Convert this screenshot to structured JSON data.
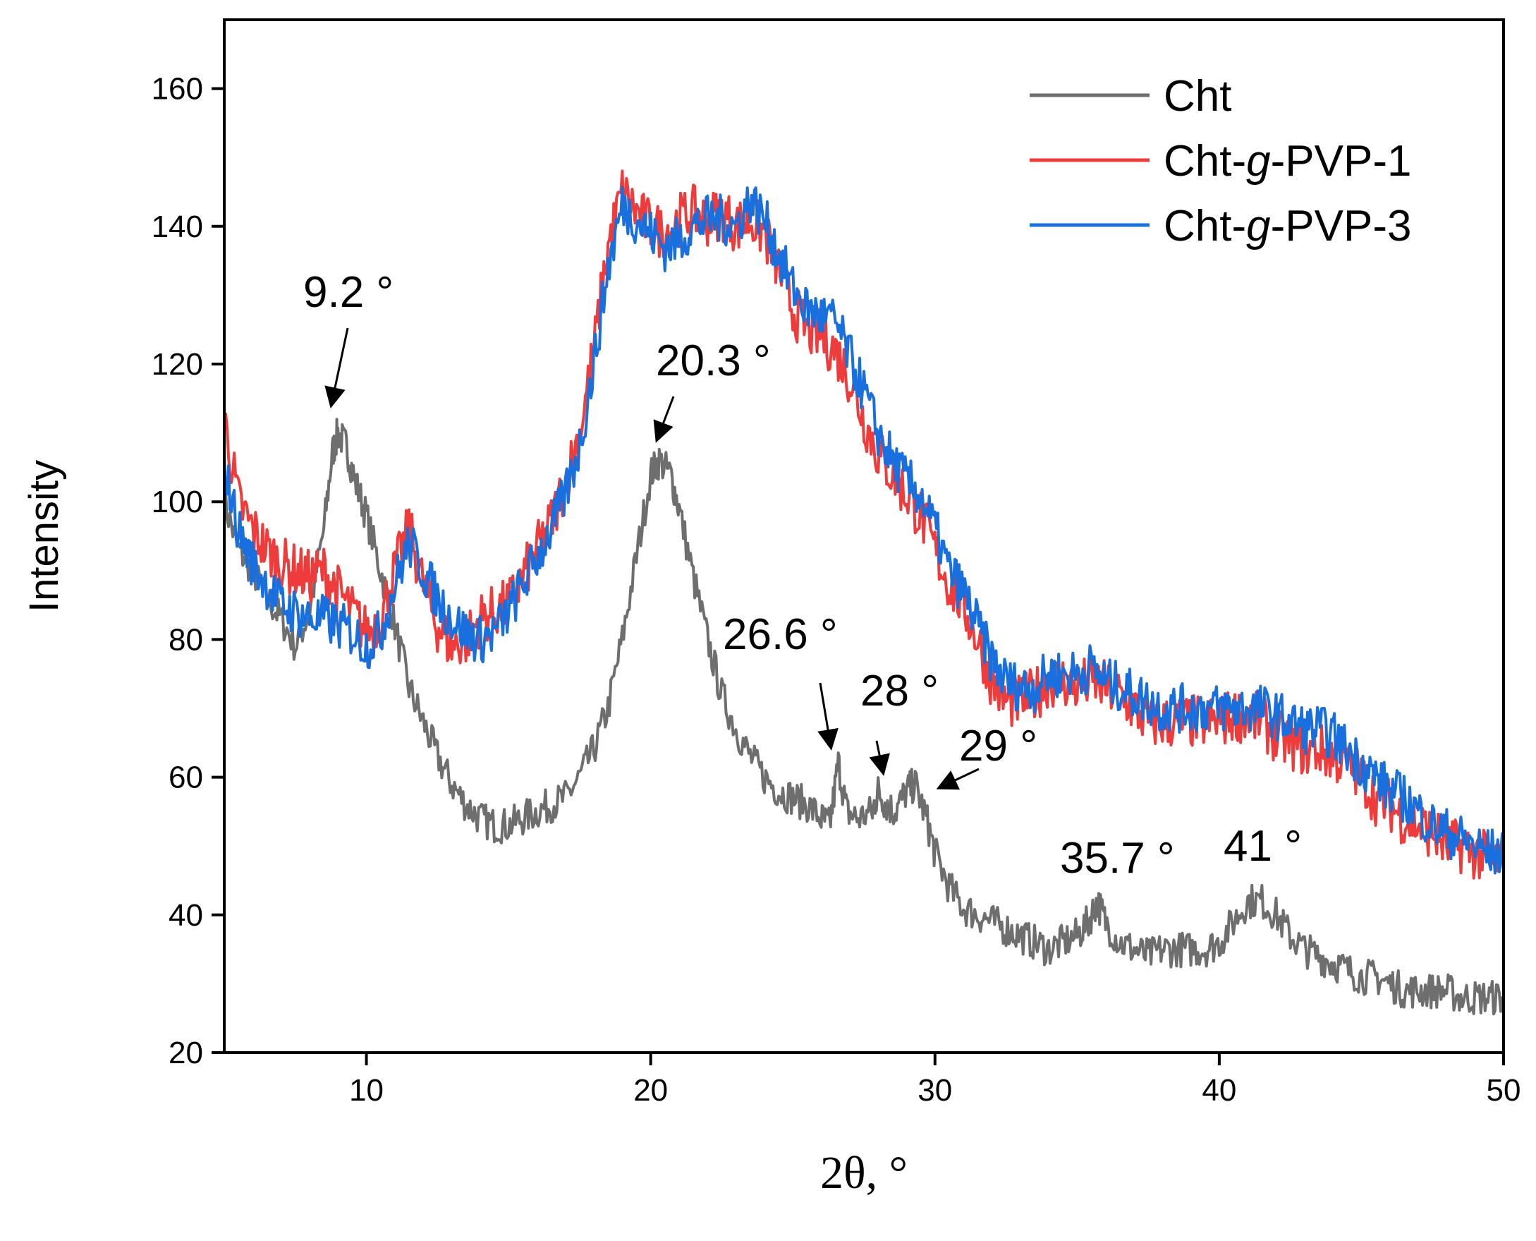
{
  "chart_data": {
    "type": "line",
    "title": "",
    "xlabel": "2θ, °",
    "ylabel": "Intensity",
    "xlim": [
      5,
      50
    ],
    "ylim": [
      20,
      170
    ],
    "xticks": [
      10,
      20,
      30,
      40,
      50
    ],
    "yticks": [
      20,
      40,
      60,
      80,
      100,
      120,
      140,
      160
    ],
    "legend_position": "top-right",
    "series": [
      {
        "name": "Cht",
        "color": "#6e6e6e",
        "points": [
          [
            5,
            100
          ],
          [
            5.5,
            93
          ],
          [
            6,
            90
          ],
          [
            6.5,
            86
          ],
          [
            7,
            83
          ],
          [
            7.5,
            79
          ],
          [
            8,
            84
          ],
          [
            8.5,
            96
          ],
          [
            8.8,
            107
          ],
          [
            9,
            110
          ],
          [
            9.3,
            108
          ],
          [
            9.6,
            103
          ],
          [
            10,
            98
          ],
          [
            10.5,
            90
          ],
          [
            11,
            82
          ],
          [
            11.5,
            73
          ],
          [
            12,
            68
          ],
          [
            12.5,
            63
          ],
          [
            13,
            59
          ],
          [
            13.5,
            56
          ],
          [
            14,
            54
          ],
          [
            14.5,
            53
          ],
          [
            15,
            53
          ],
          [
            15.5,
            54
          ],
          [
            16,
            55
          ],
          [
            16.5,
            56
          ],
          [
            17,
            57
          ],
          [
            17.5,
            60
          ],
          [
            18,
            64
          ],
          [
            18.5,
            70
          ],
          [
            19,
            80
          ],
          [
            19.5,
            92
          ],
          [
            20,
            104
          ],
          [
            20.3,
            106
          ],
          [
            20.7,
            104
          ],
          [
            21,
            99
          ],
          [
            21.5,
            89
          ],
          [
            22,
            80
          ],
          [
            22.5,
            72
          ],
          [
            23,
            67
          ],
          [
            23.5,
            63
          ],
          [
            24,
            60
          ],
          [
            24.5,
            58
          ],
          [
            25,
            57
          ],
          [
            25.5,
            56
          ],
          [
            26,
            54
          ],
          [
            26.3,
            53
          ],
          [
            26.6,
            62
          ],
          [
            26.9,
            55
          ],
          [
            27.3,
            54
          ],
          [
            27.8,
            55
          ],
          [
            28,
            58
          ],
          [
            28.3,
            56
          ],
          [
            28.6,
            55
          ],
          [
            29,
            58
          ],
          [
            29.3,
            59
          ],
          [
            29.7,
            54
          ],
          [
            30,
            49
          ],
          [
            30.5,
            44
          ],
          [
            31,
            41
          ],
          [
            31.5,
            40
          ],
          [
            32,
            39
          ],
          [
            32.5,
            38
          ],
          [
            33,
            37
          ],
          [
            33.5,
            36
          ],
          [
            34,
            35
          ],
          [
            34.5,
            36
          ],
          [
            35,
            37
          ],
          [
            35.4,
            39
          ],
          [
            35.7,
            42
          ],
          [
            36,
            39
          ],
          [
            36.5,
            36
          ],
          [
            37,
            35
          ],
          [
            37.5,
            34
          ],
          [
            38,
            35
          ],
          [
            38.5,
            35
          ],
          [
            39,
            35
          ],
          [
            39.5,
            35
          ],
          [
            40,
            36
          ],
          [
            40.5,
            39
          ],
          [
            41,
            42
          ],
          [
            41.5,
            42
          ],
          [
            42,
            40
          ],
          [
            42.5,
            37
          ],
          [
            43,
            35
          ],
          [
            43.5,
            34
          ],
          [
            44,
            33
          ],
          [
            44.5,
            32
          ],
          [
            45,
            31
          ],
          [
            45.5,
            31
          ],
          [
            46,
            30
          ],
          [
            46.5,
            29
          ],
          [
            47,
            29
          ],
          [
            47.5,
            29
          ],
          [
            48,
            29
          ],
          [
            48.5,
            28
          ],
          [
            49,
            28
          ],
          [
            49.5,
            28
          ],
          [
            50,
            28
          ]
        ]
      },
      {
        "name": "Cht-g-PVP-1",
        "color": "#ee3b3b",
        "points": [
          [
            5,
            112
          ],
          [
            5.5,
            100
          ],
          [
            6,
            96
          ],
          [
            6.5,
            93
          ],
          [
            7,
            91
          ],
          [
            7.5,
            90
          ],
          [
            8,
            89
          ],
          [
            8.5,
            90
          ],
          [
            9,
            87
          ],
          [
            9.5,
            84
          ],
          [
            10,
            81
          ],
          [
            10.5,
            83
          ],
          [
            11,
            90
          ],
          [
            11.5,
            96
          ],
          [
            12,
            88
          ],
          [
            12.5,
            82
          ],
          [
            13,
            79
          ],
          [
            13.5,
            80
          ],
          [
            14,
            83
          ],
          [
            14.5,
            84
          ],
          [
            15,
            85
          ],
          [
            15.5,
            89
          ],
          [
            16,
            93
          ],
          [
            16.5,
            97
          ],
          [
            17,
            103
          ],
          [
            17.5,
            110
          ],
          [
            18,
            122
          ],
          [
            18.5,
            137
          ],
          [
            19,
            145
          ],
          [
            19.5,
            142
          ],
          [
            20,
            140
          ],
          [
            20.5,
            139
          ],
          [
            21,
            141
          ],
          [
            21.5,
            142
          ],
          [
            22,
            141
          ],
          [
            22.5,
            142
          ],
          [
            23,
            140
          ],
          [
            23.5,
            141
          ],
          [
            24,
            139
          ],
          [
            24.5,
            134
          ],
          [
            25,
            128
          ],
          [
            25.5,
            125
          ],
          [
            26,
            124
          ],
          [
            26.5,
            122
          ],
          [
            27,
            118
          ],
          [
            27.5,
            112
          ],
          [
            28,
            107
          ],
          [
            28.5,
            104
          ],
          [
            29,
            101
          ],
          [
            29.5,
            98
          ],
          [
            30,
            93
          ],
          [
            30.5,
            88
          ],
          [
            31,
            85
          ],
          [
            31.5,
            80
          ],
          [
            32,
            74
          ],
          [
            32.5,
            71
          ],
          [
            33,
            71
          ],
          [
            33.5,
            72
          ],
          [
            34,
            74
          ],
          [
            34.5,
            74
          ],
          [
            35,
            73
          ],
          [
            35.5,
            74
          ],
          [
            36,
            73
          ],
          [
            36.5,
            72
          ],
          [
            37,
            70
          ],
          [
            37.5,
            68
          ],
          [
            38,
            68
          ],
          [
            38.5,
            68
          ],
          [
            39,
            68
          ],
          [
            39.5,
            68
          ],
          [
            40,
            68
          ],
          [
            40.5,
            69
          ],
          [
            41,
            69
          ],
          [
            41.5,
            68
          ],
          [
            42,
            66
          ],
          [
            42.5,
            65
          ],
          [
            43,
            64
          ],
          [
            43.5,
            64
          ],
          [
            44,
            63
          ],
          [
            44.5,
            62
          ],
          [
            45,
            60
          ],
          [
            45.5,
            57
          ],
          [
            46,
            56
          ],
          [
            46.5,
            54
          ],
          [
            47,
            53
          ],
          [
            47.5,
            52
          ],
          [
            48,
            50
          ],
          [
            48.5,
            50
          ],
          [
            49,
            49
          ],
          [
            49.5,
            48
          ],
          [
            50,
            48
          ]
        ]
      },
      {
        "name": "Cht-g-PVP-3",
        "color": "#1a6fdf",
        "points": [
          [
            5,
            105
          ],
          [
            5.5,
            96
          ],
          [
            6,
            91
          ],
          [
            6.5,
            88
          ],
          [
            7,
            85
          ],
          [
            7.5,
            84
          ],
          [
            8,
            83
          ],
          [
            8.5,
            83
          ],
          [
            9,
            82
          ],
          [
            9.5,
            81
          ],
          [
            10,
            79
          ],
          [
            10.5,
            81
          ],
          [
            11,
            88
          ],
          [
            11.5,
            94
          ],
          [
            12,
            90
          ],
          [
            12.5,
            86
          ],
          [
            13,
            83
          ],
          [
            13.5,
            81
          ],
          [
            14,
            80
          ],
          [
            14.5,
            81
          ],
          [
            15,
            84
          ],
          [
            15.5,
            88
          ],
          [
            16,
            92
          ],
          [
            16.5,
            96
          ],
          [
            17,
            101
          ],
          [
            17.5,
            108
          ],
          [
            18,
            120
          ],
          [
            18.5,
            134
          ],
          [
            19,
            143
          ],
          [
            19.5,
            141
          ],
          [
            20,
            139
          ],
          [
            20.5,
            137
          ],
          [
            21,
            138
          ],
          [
            21.5,
            140
          ],
          [
            22,
            141
          ],
          [
            22.5,
            141
          ],
          [
            23,
            140
          ],
          [
            23.5,
            144
          ],
          [
            24,
            141
          ],
          [
            24.5,
            136
          ],
          [
            25,
            131
          ],
          [
            25.5,
            128
          ],
          [
            26,
            127
          ],
          [
            26.5,
            126
          ],
          [
            27,
            121
          ],
          [
            27.5,
            116
          ],
          [
            28,
            110
          ],
          [
            28.5,
            106
          ],
          [
            29,
            103
          ],
          [
            29.5,
            101
          ],
          [
            30,
            96
          ],
          [
            30.5,
            90
          ],
          [
            31,
            87
          ],
          [
            31.5,
            82
          ],
          [
            32,
            77
          ],
          [
            32.5,
            74
          ],
          [
            33,
            73
          ],
          [
            33.5,
            73
          ],
          [
            34,
            75
          ],
          [
            34.5,
            75
          ],
          [
            35,
            75
          ],
          [
            35.5,
            76
          ],
          [
            36,
            74
          ],
          [
            36.5,
            73
          ],
          [
            37,
            72
          ],
          [
            37.5,
            71
          ],
          [
            38,
            70
          ],
          [
            38.5,
            70
          ],
          [
            39,
            70
          ],
          [
            39.5,
            70
          ],
          [
            40,
            70
          ],
          [
            40.5,
            70
          ],
          [
            41,
            70
          ],
          [
            41.5,
            70
          ],
          [
            42,
            69
          ],
          [
            42.5,
            68
          ],
          [
            43,
            67
          ],
          [
            43.5,
            67
          ],
          [
            44,
            66
          ],
          [
            44.5,
            64
          ],
          [
            45,
            62
          ],
          [
            45.5,
            60
          ],
          [
            46,
            58
          ],
          [
            46.5,
            57
          ],
          [
            47,
            55
          ],
          [
            47.5,
            53
          ],
          [
            48,
            52
          ],
          [
            48.5,
            51
          ],
          [
            49,
            50
          ],
          [
            49.5,
            49
          ],
          [
            50,
            49
          ]
        ]
      }
    ],
    "annotations": [
      {
        "text": "9.2 °",
        "x": 9.2,
        "y": 110
      },
      {
        "text": "20.3 °",
        "x": 20.3,
        "y": 106
      },
      {
        "text": "26.6 °",
        "x": 26.6,
        "y": 62
      },
      {
        "text": "28 °",
        "x": 28,
        "y": 58
      },
      {
        "text": "29 °",
        "x": 29,
        "y": 59
      },
      {
        "text": "35.7 °",
        "x": 35.7,
        "y": 42
      },
      {
        "text": "41 °",
        "x": 41,
        "y": 42
      }
    ]
  }
}
